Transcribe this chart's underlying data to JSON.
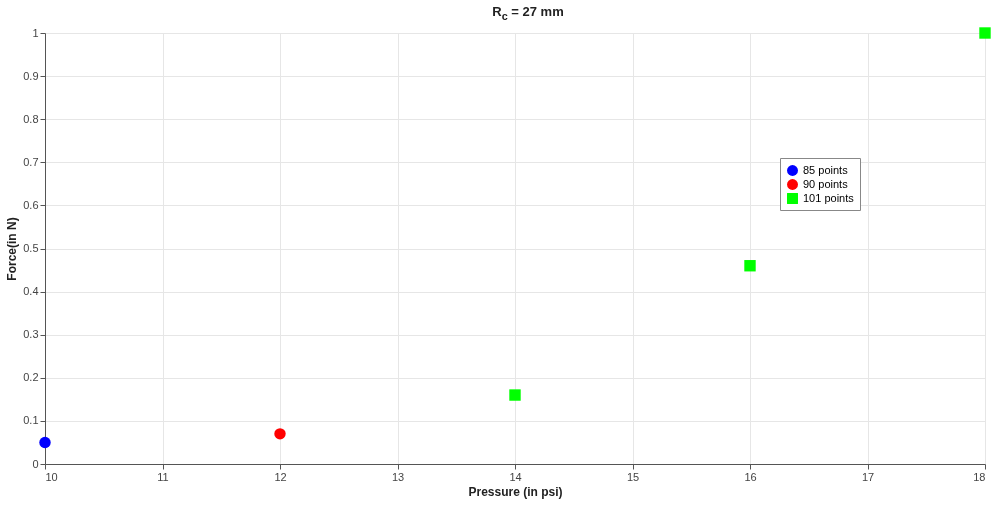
{
  "chart_data": {
    "type": "scatter",
    "title": "R$_{c}$ = 27 mm",
    "xlabel": "Pressure (in psi)",
    "ylabel": "Force(in N)",
    "xlim": [
      10,
      18
    ],
    "xticks": [
      10,
      11,
      12,
      13,
      14,
      15,
      16,
      17,
      18
    ],
    "ylim": [
      0,
      1
    ],
    "yticks": [
      0,
      0.1,
      0.2,
      0.3,
      0.4,
      0.5,
      0.6,
      0.7,
      0.8,
      0.9,
      1
    ],
    "grid": true,
    "legend": "top right",
    "series": [
      {
        "name": "85 points",
        "color": "#0000ff",
        "marker": "circle",
        "x": [
          10
        ],
        "values": [
          0.05
        ]
      },
      {
        "name": "90 points",
        "color": "#ff0000",
        "marker": "circle",
        "x": [
          12
        ],
        "values": [
          0.07
        ]
      },
      {
        "name": "101 points",
        "color": "#00ff00",
        "marker": "square",
        "x": [
          14,
          16,
          18
        ],
        "values": [
          0.16,
          0.46,
          1.0
        ]
      }
    ]
  }
}
